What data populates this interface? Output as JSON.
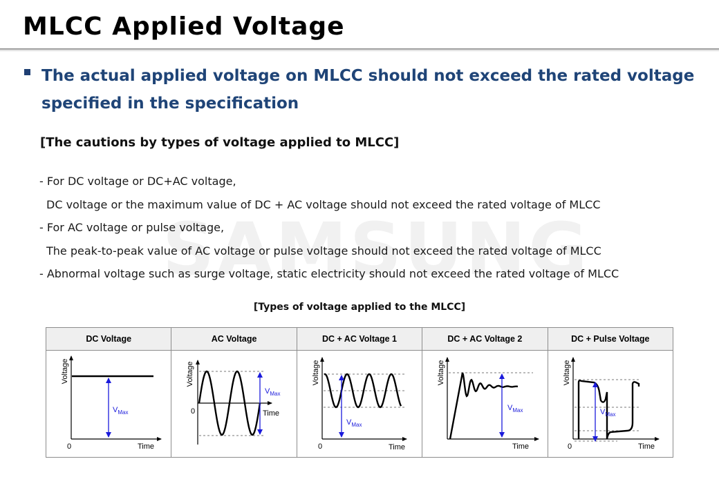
{
  "page": {
    "title": "MLCC Applied Voltage",
    "watermark": "SAMSUNG"
  },
  "bullet": {
    "text": "The actual applied voltage on MLCC should not exceed the rated voltage specified in the specification"
  },
  "section": {
    "heading": "[The cautions by types of voltage applied to MLCC]",
    "rules": [
      "- For DC voltage or DC+AC voltage,",
      "DC voltage or the maximum value of DC + AC voltage should not exceed the rated voltage of MLCC",
      "- For AC voltage or pulse voltage,",
      "The peak-to-peak value of AC voltage or pulse voltage should not exceed the rated voltage of MLCC",
      "- Abnormal voltage such as surge voltage, static electricity should not exceed the rated voltage of MLCC"
    ]
  },
  "table": {
    "caption": "[Types of voltage applied to the MLCC]",
    "columns": [
      "DC Voltage",
      "AC Voltage",
      "DC + AC Voltage 1",
      "DC + AC Voltage 2",
      "DC + Pulse Voltage"
    ]
  },
  "diagram_labels": {
    "y_axis": "Voltage",
    "x_axis": "Time",
    "origin": "0",
    "vmax_v": "V",
    "vmax_sub": "Max"
  },
  "colors": {
    "title": "#000000",
    "bullet_text": "#1f4477",
    "vmax_arrow": "#1a1adb",
    "header_bg": "#efefef"
  }
}
